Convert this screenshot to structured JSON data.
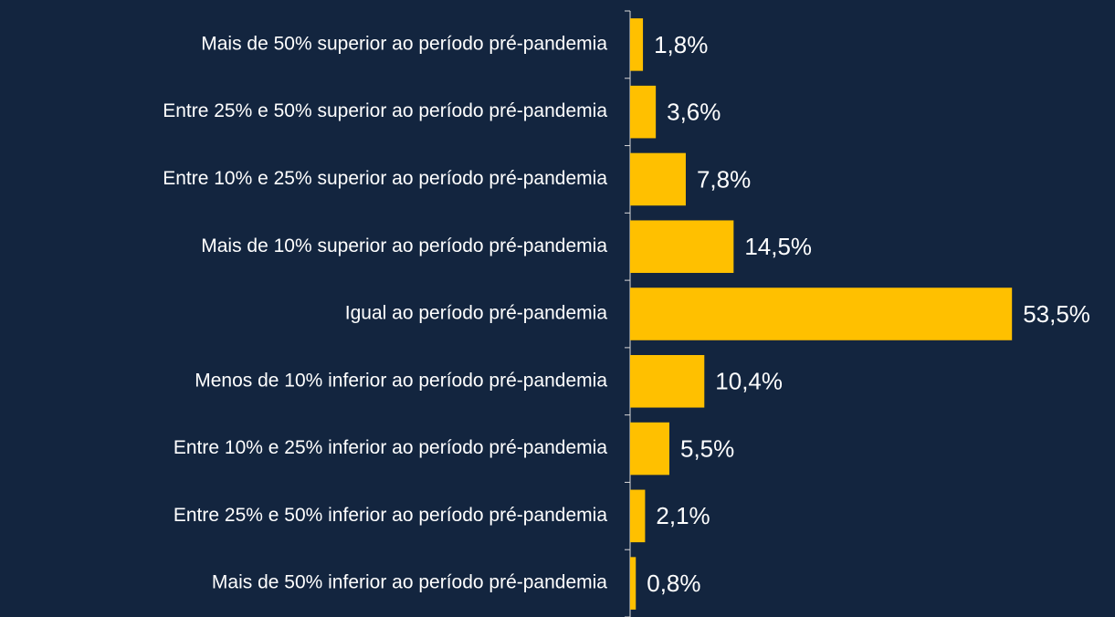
{
  "chart_data": {
    "type": "barh",
    "categories": [
      "Mais de 50% superior ao período pré-pandemia",
      "Entre 25% e 50% superior ao período pré-pandemia",
      "Entre 10% e 25% superior ao período pré-pandemia",
      "Mais de 10% superior ao período pré-pandemia",
      "Igual ao período pré-pandemia",
      "Menos de 10% inferior ao período pré-pandemia",
      "Entre 10% e 25% inferior ao período pré-pandemia",
      "Entre 25% e 50% inferior ao período pré-pandemia",
      "Mais de 50% inferior ao período pré-pandemia"
    ],
    "values": [
      1.8,
      3.6,
      7.8,
      14.5,
      53.5,
      10.4,
      5.5,
      2.1,
      0.8
    ],
    "value_labels": [
      "1,8%",
      "3,6%",
      "7,8%",
      "14,5%",
      "53,5%",
      "10,4%",
      "5,5%",
      "2,1%",
      "0,8%"
    ],
    "color": "#ffc000",
    "xlim": [
      0,
      60
    ]
  }
}
